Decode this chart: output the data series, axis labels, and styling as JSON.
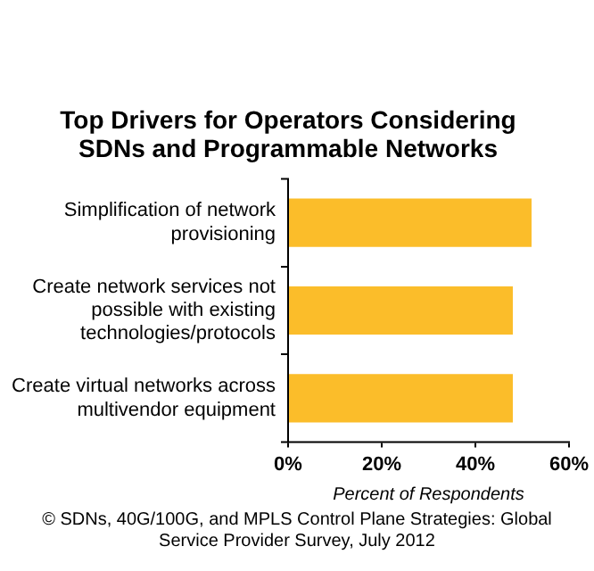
{
  "chart_data": {
    "type": "bar",
    "orientation": "horizontal",
    "title": "Top Drivers for Operators Considering SDNs and Programmable Networks",
    "xlabel": "Percent of Respondents",
    "categories": [
      "Simplification of network provisioning",
      "Create network services not possible with existing technologies/protocols",
      "Create virtual networks across multivendor equipment"
    ],
    "values": [
      52,
      48,
      48
    ],
    "color": "#fbbd2a",
    "xlim": [
      0,
      60
    ],
    "xticks": [
      {
        "value": 0,
        "label": "0%"
      },
      {
        "value": 20,
        "label": "20%"
      },
      {
        "value": 40,
        "label": "40%"
      },
      {
        "value": 60,
        "label": "60%"
      }
    ],
    "legend": false,
    "annotations": [
      "© SDNs, 40G/100G, and MPLS Control Plane Strategies: Global Service Provider Survey, July 2012"
    ]
  }
}
